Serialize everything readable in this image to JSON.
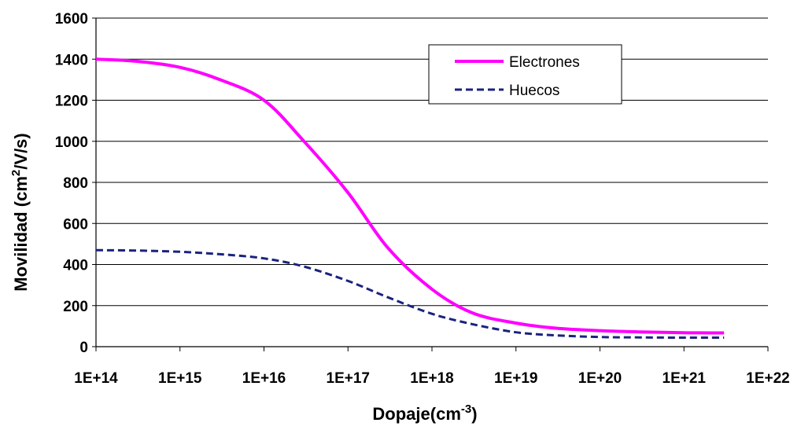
{
  "chart_data": {
    "type": "line",
    "title": "",
    "xlabel": "Dopaje(cm",
    "xlabel_sup": "-3",
    "xlabel_end": ")",
    "ylabel": "Movilidad (cm",
    "ylabel_sup": "2",
    "ylabel_end": "/V/s)",
    "x_scale": "log",
    "xlim": [
      100000000000000.0,
      1e+22
    ],
    "ylim": [
      0,
      1600
    ],
    "x_ticks": [
      "1E+14",
      "1E+15",
      "1E+16",
      "1E+17",
      "1E+18",
      "1E+19",
      "1E+20",
      "1E+21",
      "1E+22"
    ],
    "y_ticks": [
      "0",
      "200",
      "400",
      "600",
      "800",
      "1000",
      "1200",
      "1400",
      "1600"
    ],
    "grid": "horizontal",
    "legend_position": "top-right",
    "series": [
      {
        "name": "Electrones",
        "color": "#ff00ff",
        "style": "solid",
        "x": [
          100000000000000.0,
          300000000000000.0,
          1000000000000000.0,
          3000000000000000.0,
          1e+16,
          3e+16,
          1e+17,
          3e+17,
          1e+18,
          3e+18,
          1e+19,
          3e+19,
          1e+20,
          3e+20,
          1e+21,
          3e+21
        ],
        "y": [
          1400,
          1390,
          1360,
          1300,
          1200,
          1000,
          750,
          480,
          280,
          165,
          115,
          90,
          78,
          72,
          68,
          67
        ]
      },
      {
        "name": "Huecos",
        "color": "#1a237e",
        "style": "dashed",
        "x": [
          100000000000000.0,
          300000000000000.0,
          1000000000000000.0,
          3000000000000000.0,
          1e+16,
          3e+16,
          1e+17,
          3e+17,
          1e+18,
          3e+18,
          1e+19,
          3e+19,
          1e+20,
          3e+20,
          1e+21,
          3e+21
        ],
        "y": [
          470,
          468,
          462,
          450,
          430,
          390,
          320,
          240,
          160,
          110,
          70,
          55,
          47,
          45,
          44,
          44
        ]
      }
    ]
  }
}
